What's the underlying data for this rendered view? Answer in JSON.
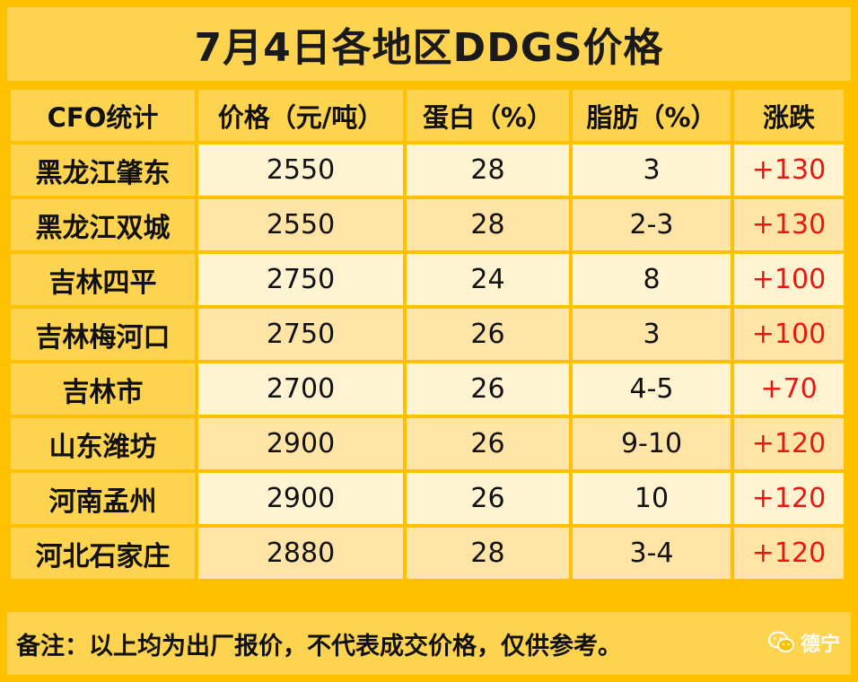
{
  "title": "7月4日各地区DDGS价格",
  "headers": [
    "CFO统计",
    "价格（元/吨）",
    "蛋白（%）",
    "脂肪（%）",
    "涨跌"
  ],
  "rows": [
    {
      "region": "黑龙江肇东",
      "price": "2550",
      "protein": "28",
      "fat": "3",
      "change": "+130"
    },
    {
      "region": "黑龙江双城",
      "price": "2550",
      "protein": "28",
      "fat": "2-3",
      "change": "+130"
    },
    {
      "region": "吉林四平",
      "price": "2750",
      "protein": "24",
      "fat": "8",
      "change": "+100"
    },
    {
      "region": "吉林梅河口",
      "price": "2750",
      "protein": "26",
      "fat": "3",
      "change": "+100"
    },
    {
      "region": "吉林市",
      "price": "2700",
      "protein": "26",
      "fat": "4-5",
      "change": "+70"
    },
    {
      "region": "山东潍坊",
      "price": "2900",
      "protein": "26",
      "fat": "9-10",
      "change": "+120"
    },
    {
      "region": "河南孟州",
      "price": "2900",
      "protein": "26",
      "fat": "10",
      "change": "+120"
    },
    {
      "region": "河北石家庄",
      "price": "2880",
      "protein": "28",
      "fat": "3-4",
      "change": "+120"
    }
  ],
  "footer_note": "备注：以上均为出厂报价，不代表成交价格，仅供参考。",
  "watermark": {
    "icon": "wechat-icon",
    "text": "德宁"
  },
  "colors": {
    "frame": "#ffc000",
    "header_fill": "#fed34f",
    "row_light": "#fff3d2",
    "row_dark": "#fee4a6",
    "change_text": "#e8170f"
  }
}
